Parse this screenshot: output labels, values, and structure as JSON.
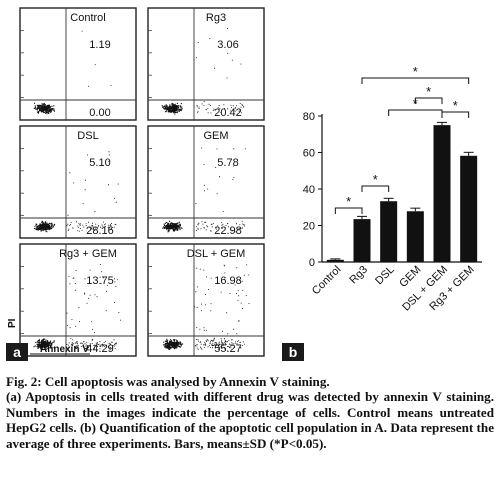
{
  "figure": {
    "panel_a_label": "a",
    "panel_b_label": "b",
    "panel_a": {
      "x_axis_label": "Annexin V",
      "y_axis_label": "PI",
      "plots": [
        {
          "title": "Control",
          "upper_right": "1.19",
          "lower_right": "0.00"
        },
        {
          "title": "Rg3",
          "upper_right": "3.06",
          "lower_right": "20.42"
        },
        {
          "title": "DSL",
          "upper_right": "5.10",
          "lower_right": "28.16"
        },
        {
          "title": "GEM",
          "upper_right": "5.78",
          "lower_right": "22.98"
        },
        {
          "title": "Rg3 + GEM",
          "upper_right": "13.75",
          "lower_right": "44.29"
        },
        {
          "title": "DSL + GEM",
          "upper_right": "16.98",
          "lower_right": "55.27"
        }
      ]
    }
  },
  "chart_data": {
    "type": "bar",
    "categories": [
      "Control",
      "Rg3",
      "DSL",
      "GEM",
      "DSL + GEM",
      "Rg3 + GEM"
    ],
    "values": [
      1.2,
      23.5,
      33.3,
      27.8,
      75.0,
      58.2
    ],
    "errors": [
      0.5,
      1.5,
      1.6,
      1.7,
      1.5,
      1.9
    ],
    "ylim": [
      0,
      80
    ],
    "yticks": [
      "0",
      "20",
      "40",
      "60",
      "80"
    ],
    "bar_color": "#111111",
    "significance_marker": "*",
    "significance_brackets": [
      {
        "from": "Control",
        "to": "Rg3"
      },
      {
        "from": "Rg3",
        "to": "DSL"
      },
      {
        "from": "DSL",
        "to": "DSL + GEM"
      },
      {
        "from": "DSL + GEM",
        "to": "Rg3 + GEM"
      },
      {
        "from": "GEM",
        "to": "DSL + GEM"
      },
      {
        "from": "Rg3",
        "to": "Rg3 + GEM"
      }
    ]
  },
  "caption": {
    "title": "Fig. 2: Cell apoptosis was analysed by Annexin V staining.",
    "body": "(a) Apoptosis in cells treated with different drug was detected by annexin V staining. Numbers in the images indicate the percentage of cells. Control means untreated HepG2 cells. (b) Quantification of the apoptotic cell population in A. Data represent the average of three experiments. Bars, means±SD (*P<0.05)."
  }
}
